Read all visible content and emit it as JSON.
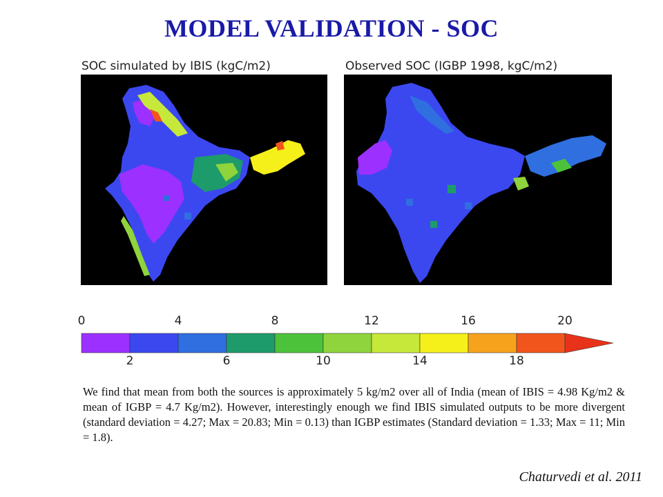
{
  "title": "MODEL VALIDATION - SOC",
  "maps": {
    "left_caption": "SOC simulated by IBIS (kgC/m2)",
    "right_caption": "Observed SOC (IGBP 1998, kgC/m2)"
  },
  "legend": {
    "top_ticks": [
      "0",
      "4",
      "8",
      "12",
      "16",
      "20"
    ],
    "bottom_ticks": [
      "2",
      "6",
      "10",
      "14",
      "18"
    ],
    "colors": [
      "#9b30ff",
      "#3b48f0",
      "#2f6fe0",
      "#1e9b6a",
      "#4cc23a",
      "#8fd43c",
      "#c6e83a",
      "#f6f01a",
      "#f7a21c",
      "#f2551c"
    ],
    "arrow_color": "#e8321a"
  },
  "note": "We find that mean from both the sources is approximately 5 kg/m2 over all of India (mean of IBIS = 4.98 Kg/m2 & mean of IGBP = 4.7 Kg/m2). However, interestingly enough we find IBIS simulated outputs to be more divergent (standard deviation = 4.27; Max = 20.83; Min = 0.13) than IGBP estimates (Standard deviation = 1.33; Max = 11; Min = 1.8).",
  "citation": "Chaturvedi et al. 2011"
}
